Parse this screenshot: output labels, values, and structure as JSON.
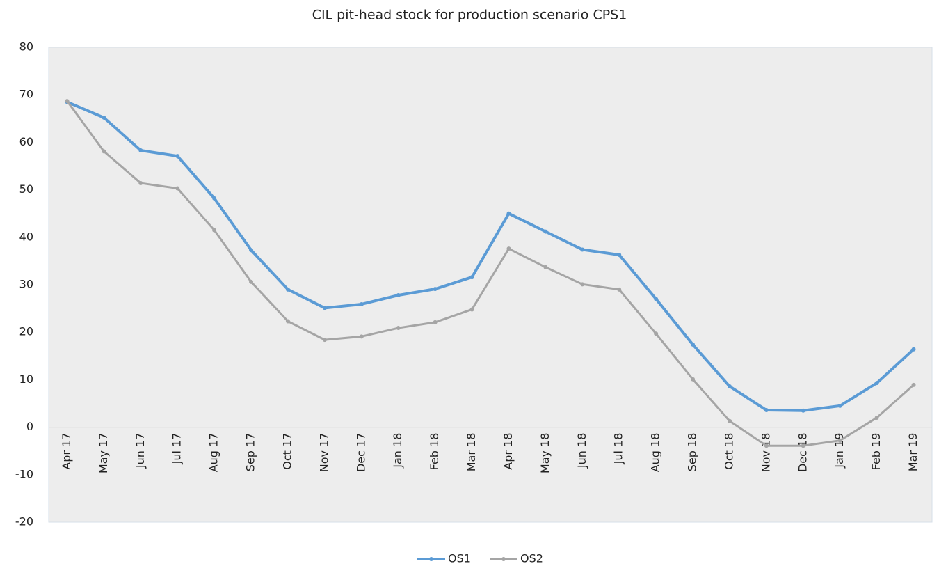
{
  "chart_data": {
    "type": "line",
    "title": "CIL pit-head stock for production scenario CPS1",
    "categories": [
      "Apr 17",
      "May 17",
      "Jun 17",
      "Jul 17",
      "Aug 17",
      "Sep 17",
      "Oct 17",
      "Nov 17",
      "Dec 17",
      "Jan 18",
      "Feb 18",
      "Mar 18",
      "Apr 18",
      "May 18",
      "Jun 18",
      "Jul 18",
      "Aug 18",
      "Sep 18",
      "Oct 18",
      "Nov 18",
      "Dec 18",
      "Jan 19",
      "Feb 19",
      "Mar 19"
    ],
    "series": [
      {
        "name": "OS1",
        "color": "#5b9bd5",
        "values": [
          68.5,
          65.2,
          58.3,
          57.1,
          48.2,
          37.3,
          29.0,
          25.1,
          25.9,
          27.8,
          29.1,
          31.6,
          45.0,
          41.2,
          37.4,
          36.3,
          27.0,
          17.4,
          8.6,
          3.6,
          3.5,
          4.5,
          9.3,
          16.4
        ]
      },
      {
        "name": "OS2",
        "color": "#a5a5a5",
        "values": [
          68.7,
          58.1,
          51.4,
          50.3,
          41.5,
          30.6,
          22.3,
          18.4,
          19.1,
          20.9,
          22.1,
          24.8,
          37.6,
          33.7,
          30.1,
          29.0,
          19.7,
          10.1,
          1.3,
          -3.9,
          -3.9,
          -2.8,
          2.0,
          8.9
        ]
      }
    ],
    "ylim": [
      -20,
      80
    ],
    "yticks": [
      -20,
      -10,
      0,
      10,
      20,
      30,
      40,
      50,
      60,
      70,
      80
    ],
    "grid": false,
    "legend": "bottom"
  }
}
